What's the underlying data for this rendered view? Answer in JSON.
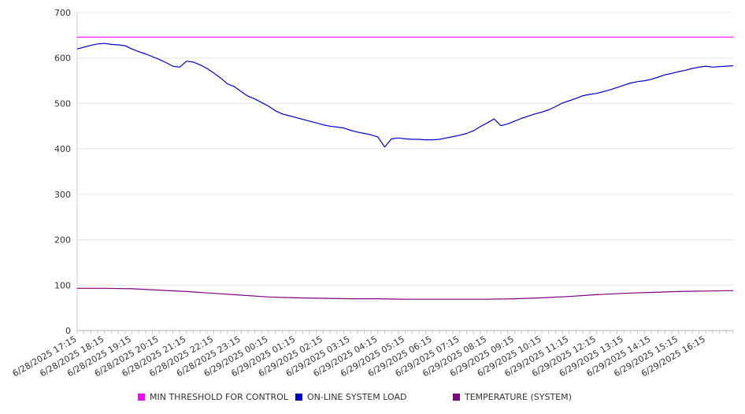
{
  "chart_data": {
    "type": "line",
    "title": "",
    "xlabel": "",
    "ylabel": "",
    "ylim": [
      0,
      700
    ],
    "yticks": [
      0,
      100,
      200,
      300,
      400,
      500,
      600,
      700
    ],
    "grid": true,
    "legend_position": "bottom",
    "x_tick_labels": [
      "6/28/2025 17:15",
      "6/28/2025 18:15",
      "6/28/2025 19:15",
      "6/28/2025 20:15",
      "6/28/2025 21:15",
      "6/28/2025 22:15",
      "6/28/2025 23:15",
      "6/29/2025 00:15",
      "6/29/2025 01:15",
      "6/29/2025 02:15",
      "6/29/2025 03:15",
      "6/29/2025 04:15",
      "6/29/2025 05:15",
      "6/29/2025 06:15",
      "6/29/2025 07:15",
      "6/29/2025 08:15",
      "6/29/2025 09:15",
      "6/29/2025 10:15",
      "6/29/2025 11:15",
      "6/29/2025 12:15",
      "6/29/2025 13:15",
      "6/29/2025 14:15",
      "6/29/2025 15:15",
      "6/29/2025 16:15"
    ],
    "x_start": "6/28/2025 17:15",
    "x_end": "6/29/2025 17:15",
    "series": [
      {
        "name": "MIN THRESHOLD FOR CONTROL",
        "color": "#ff00ff",
        "x": [
          "6/28/2025 17:15",
          "6/29/2025 17:15"
        ],
        "values": [
          646,
          646
        ]
      },
      {
        "name": "ON-LINE SYSTEM LOAD",
        "color": "#0000cc",
        "x": [
          "6/28/2025 17:15",
          "6/28/2025 17:30",
          "6/28/2025 17:45",
          "6/28/2025 18:00",
          "6/28/2025 18:15",
          "6/28/2025 18:30",
          "6/28/2025 18:45",
          "6/28/2025 19:00",
          "6/28/2025 19:15",
          "6/28/2025 19:30",
          "6/28/2025 19:45",
          "6/28/2025 20:00",
          "6/28/2025 20:15",
          "6/28/2025 20:30",
          "6/28/2025 20:45",
          "6/28/2025 21:00",
          "6/28/2025 21:15",
          "6/28/2025 21:30",
          "6/28/2025 21:45",
          "6/28/2025 22:00",
          "6/28/2025 22:15",
          "6/28/2025 22:30",
          "6/28/2025 22:45",
          "6/28/2025 23:00",
          "6/28/2025 23:15",
          "6/28/2025 23:30",
          "6/28/2025 23:45",
          "6/29/2025 00:00",
          "6/29/2025 00:15",
          "6/29/2025 00:30",
          "6/29/2025 00:45",
          "6/29/2025 01:00",
          "6/29/2025 01:15",
          "6/29/2025 01:30",
          "6/29/2025 01:45",
          "6/29/2025 02:00",
          "6/29/2025 02:15",
          "6/29/2025 02:30",
          "6/29/2025 02:45",
          "6/29/2025 03:00",
          "6/29/2025 03:15",
          "6/29/2025 03:30",
          "6/29/2025 03:45",
          "6/29/2025 04:00",
          "6/29/2025 04:15",
          "6/29/2025 04:30",
          "6/29/2025 04:45",
          "6/29/2025 05:00",
          "6/29/2025 05:15",
          "6/29/2025 05:30",
          "6/29/2025 05:45",
          "6/29/2025 06:00",
          "6/29/2025 06:15",
          "6/29/2025 06:30",
          "6/29/2025 06:45",
          "6/29/2025 07:00",
          "6/29/2025 07:15",
          "6/29/2025 07:30",
          "6/29/2025 07:45",
          "6/29/2025 08:00",
          "6/29/2025 08:15",
          "6/29/2025 08:30",
          "6/29/2025 08:45",
          "6/29/2025 09:00",
          "6/29/2025 09:15",
          "6/29/2025 09:30",
          "6/29/2025 09:45",
          "6/29/2025 10:00",
          "6/29/2025 10:15",
          "6/29/2025 10:30",
          "6/29/2025 10:45",
          "6/29/2025 11:00",
          "6/29/2025 11:15",
          "6/29/2025 11:30",
          "6/29/2025 11:45",
          "6/29/2025 12:00",
          "6/29/2025 12:15",
          "6/29/2025 12:30",
          "6/29/2025 12:45",
          "6/29/2025 13:00",
          "6/29/2025 13:15",
          "6/29/2025 13:30",
          "6/29/2025 13:45",
          "6/29/2025 14:00",
          "6/29/2025 14:15",
          "6/29/2025 14:30",
          "6/29/2025 14:45",
          "6/29/2025 15:00",
          "6/29/2025 15:15",
          "6/29/2025 15:30",
          "6/29/2025 15:45",
          "6/29/2025 16:00",
          "6/29/2025 16:15",
          "6/29/2025 16:30",
          "6/29/2025 16:45",
          "6/29/2025 17:00",
          "6/29/2025 17:15"
        ],
        "values": [
          620,
          624,
          628,
          631,
          632,
          630,
          629,
          627,
          620,
          614,
          609,
          603,
          597,
          590,
          582,
          580,
          593,
          591,
          585,
          577,
          567,
          556,
          543,
          537,
          526,
          516,
          510,
          502,
          494,
          484,
          477,
          473,
          469,
          465,
          461,
          457,
          453,
          450,
          448,
          446,
          441,
          437,
          434,
          431,
          426,
          404,
          422,
          424,
          422,
          421,
          421,
          420,
          420,
          421,
          424,
          427,
          430,
          434,
          440,
          449,
          457,
          466,
          451,
          455,
          461,
          467,
          472,
          477,
          481,
          486,
          493,
          501,
          506,
          511,
          517,
          520,
          522,
          526,
          530,
          535,
          540,
          545,
          548,
          550,
          553,
          558,
          563,
          566,
          570,
          573,
          577,
          580,
          582,
          580,
          581,
          582,
          583
        ]
      },
      {
        "name": "TEMPERATURE (SYSTEM)",
        "color": "#800080",
        "x": [
          "6/28/2025 17:15",
          "6/28/2025 18:15",
          "6/28/2025 19:15",
          "6/28/2025 20:15",
          "6/28/2025 21:15",
          "6/28/2025 22:15",
          "6/28/2025 23:15",
          "6/29/2025 00:15",
          "6/29/2025 01:15",
          "6/29/2025 02:15",
          "6/29/2025 03:15",
          "6/29/2025 04:15",
          "6/29/2025 05:15",
          "6/29/2025 06:15",
          "6/29/2025 07:15",
          "6/29/2025 08:15",
          "6/29/2025 09:15",
          "6/29/2025 10:15",
          "6/29/2025 11:15",
          "6/29/2025 12:15",
          "6/29/2025 13:15",
          "6/29/2025 14:15",
          "6/29/2025 15:15",
          "6/29/2025 16:15",
          "6/29/2025 17:15"
        ],
        "values": [
          93,
          93,
          92,
          89,
          86,
          82,
          78,
          74,
          72,
          71,
          70,
          70,
          69,
          69,
          69,
          69,
          70,
          72,
          75,
          79,
          82,
          84,
          86,
          87,
          88
        ]
      }
    ]
  }
}
